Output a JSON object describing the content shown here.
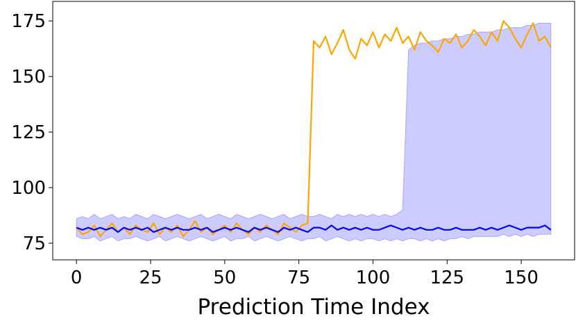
{
  "chart_data": {
    "type": "line",
    "x_label": "Prediction Time Index",
    "x": [
      0,
      2,
      4,
      6,
      8,
      10,
      12,
      14,
      16,
      18,
      20,
      22,
      24,
      26,
      28,
      30,
      32,
      34,
      36,
      38,
      40,
      42,
      44,
      46,
      48,
      50,
      52,
      54,
      56,
      58,
      60,
      62,
      64,
      66,
      68,
      70,
      72,
      74,
      76,
      78,
      80,
      82,
      84,
      86,
      88,
      90,
      92,
      94,
      96,
      98,
      100,
      102,
      104,
      106,
      108,
      110,
      112,
      114,
      116,
      118,
      120,
      122,
      124,
      126,
      128,
      130,
      132,
      134,
      136,
      138,
      140,
      142,
      144,
      146,
      148,
      150,
      152,
      154,
      156,
      158,
      160
    ],
    "series": [
      {
        "color": "#ffa500",
        "values": [
          82,
          79,
          80,
          83,
          78,
          81,
          84,
          80,
          82,
          79,
          83,
          81,
          80,
          84,
          79,
          82,
          80,
          83,
          78,
          81,
          85,
          80,
          82,
          79,
          81,
          83,
          80,
          84,
          81,
          79,
          82,
          80,
          83,
          81,
          79,
          84,
          82,
          80,
          83,
          84,
          166,
          163,
          168,
          160,
          165,
          171,
          162,
          158,
          167,
          164,
          170,
          163,
          169,
          166,
          172,
          165,
          168,
          162,
          170,
          166,
          164,
          161,
          167,
          165,
          169,
          163,
          166,
          171,
          168,
          164,
          170,
          166,
          175,
          172,
          167,
          163,
          169,
          174,
          166,
          168,
          163
        ]
      },
      {
        "color": "#0000ff",
        "values": [
          82,
          81,
          82,
          81,
          82,
          81,
          82,
          80,
          82,
          81,
          82,
          81,
          82,
          80,
          81,
          82,
          81,
          82,
          81,
          81,
          82,
          81,
          82,
          80,
          81,
          82,
          81,
          82,
          81,
          80,
          82,
          81,
          82,
          81,
          80,
          82,
          81,
          82,
          81,
          80,
          82,
          82,
          81,
          83,
          81,
          82,
          81,
          82,
          81,
          82,
          81,
          81,
          82,
          83,
          82,
          81,
          82,
          81,
          82,
          81,
          81,
          82,
          81,
          81,
          82,
          81,
          81,
          81,
          82,
          81,
          82,
          81,
          82,
          83,
          82,
          81,
          82,
          82,
          82,
          83,
          81
        ]
      }
    ],
    "band": {
      "color": "#8080ff",
      "lower": [
        78,
        77,
        77,
        78,
        76,
        77,
        78,
        76,
        77,
        77,
        78,
        77,
        76,
        77,
        78,
        76,
        77,
        78,
        77,
        76,
        77,
        78,
        77,
        76,
        77,
        78,
        76,
        77,
        77,
        78,
        76,
        77,
        78,
        77,
        76,
        77,
        78,
        77,
        76,
        77,
        77,
        78,
        76,
        77,
        78,
        77,
        76,
        77,
        76,
        77,
        77,
        76,
        77,
        76,
        77,
        76,
        77,
        77,
        76,
        77,
        76,
        77,
        76,
        77,
        77,
        78,
        77,
        78,
        78,
        78,
        78,
        78,
        79,
        78,
        79,
        78,
        79,
        78,
        79,
        79,
        79
      ],
      "upper": [
        86,
        87,
        86,
        88,
        86,
        87,
        88,
        86,
        87,
        86,
        88,
        87,
        86,
        88,
        87,
        86,
        87,
        88,
        87,
        86,
        87,
        88,
        86,
        87,
        88,
        87,
        86,
        88,
        87,
        86,
        87,
        88,
        87,
        86,
        87,
        88,
        86,
        87,
        88,
        87,
        87,
        88,
        87,
        86,
        88,
        87,
        88,
        87,
        88,
        87,
        88,
        87,
        88,
        87,
        88,
        90,
        162,
        164,
        165,
        165,
        166,
        166,
        167,
        167,
        168,
        168,
        169,
        169,
        170,
        170,
        170,
        171,
        171,
        172,
        172,
        172,
        173,
        173,
        174,
        174,
        174
      ]
    },
    "xlim": [
      -8,
      168
    ],
    "ylim": [
      67.5,
      183.8
    ],
    "xticks": [
      0,
      25,
      50,
      75,
      100,
      125,
      150
    ],
    "yticks": [
      75,
      100,
      125,
      150,
      175
    ]
  }
}
